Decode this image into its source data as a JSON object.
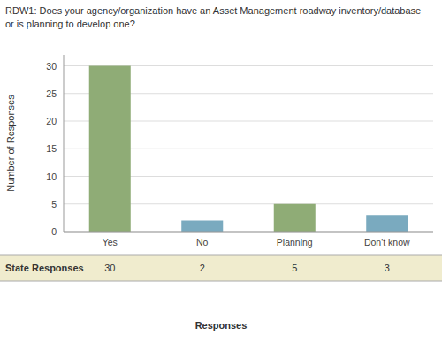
{
  "chart_data": {
    "type": "bar",
    "title": "RDW1: Does your agency/organization have an Asset Management roadway inventory/database\nor is planning to develop one?",
    "categories": [
      "Yes",
      "No",
      "Planning",
      "Don't know"
    ],
    "values": [
      30,
      2,
      5,
      3
    ],
    "colors": [
      "#8fac76",
      "#7aaabf",
      "#8fac76",
      "#7aaabf"
    ],
    "y_label": "Number of Responses",
    "x_label": "Responses",
    "annotations": [
      "State Responses"
    ],
    "data_labels": true,
    "ylim": [
      0,
      32
    ],
    "yticks": [
      0,
      5,
      10,
      15,
      20,
      25,
      30
    ],
    "grid": true
  }
}
